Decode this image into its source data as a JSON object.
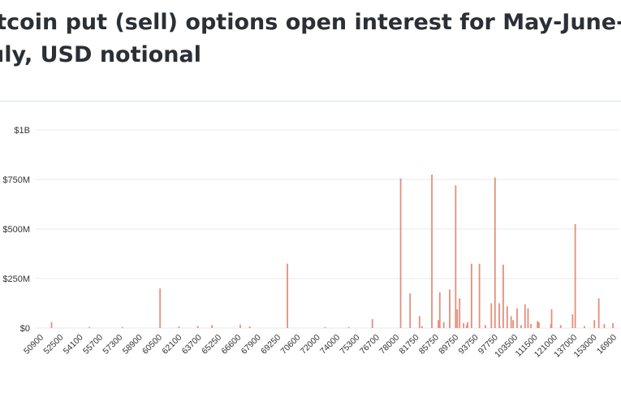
{
  "title_line1": "itcoin put (sell) options open interest for May-June-",
  "title_line2": "uly, USD notional",
  "colors": {
    "bar": "#e48f7c",
    "grid": "#e8e8e8",
    "text": "#2b2f36",
    "divider": "#d7e3e6"
  },
  "chart_data": {
    "type": "bar",
    "title": "itcoin put (sell) options open interest for May-June-uly, USD notional",
    "xlabel": "",
    "ylabel": "",
    "ylim": [
      0,
      1000000000
    ],
    "y_ticks": [
      {
        "value": 0,
        "label": "$0"
      },
      {
        "value": 250000000,
        "label": "$250M"
      },
      {
        "value": 500000000,
        "label": "$500M"
      },
      {
        "value": 750000000,
        "label": "$750M"
      },
      {
        "value": 1000000000,
        "label": "$1B"
      }
    ],
    "x_tick_labels": [
      "50900",
      "52500",
      "54100",
      "55700",
      "57300",
      "58900",
      "60500",
      "62100",
      "63700",
      "65250",
      "66600",
      "67900",
      "69250",
      "70600",
      "72000",
      "74000",
      "75300",
      "76700",
      "78000",
      "81750",
      "85750",
      "89750",
      "93750",
      "97750",
      "103500",
      "111500",
      "121000",
      "137000",
      "153000",
      "16900"
    ],
    "grid": true,
    "legend": "none",
    "slots": 122,
    "values": [
      [
        2,
        30000000
      ],
      [
        10,
        5000000
      ],
      [
        17,
        5000000
      ],
      [
        25,
        200000000
      ],
      [
        29,
        8000000
      ],
      [
        33,
        10000000
      ],
      [
        36,
        15000000
      ],
      [
        42,
        18000000
      ],
      [
        44,
        8000000
      ],
      [
        52,
        325000000
      ],
      [
        60,
        5000000
      ],
      [
        65,
        5000000
      ],
      [
        70,
        45000000
      ],
      [
        76,
        755000000
      ],
      [
        80,
        60000000
      ],
      [
        84,
        40000000
      ],
      [
        88,
        95000000
      ],
      [
        90,
        15000000
      ],
      [
        96,
        760000000
      ],
      [
        97,
        10000000
      ],
      [
        103,
        100000000
      ],
      [
        105,
        35000000
      ],
      [
        108,
        95000000
      ],
      [
        113,
        525000000
      ],
      [
        118,
        150000000
      ],
      [
        121,
        25000000
      ]
    ],
    "values_dense_region": [
      [
        0.0,
        175000000
      ],
      [
        0.06,
        10000000
      ],
      [
        0.11,
        775000000
      ],
      [
        0.15,
        180000000
      ],
      [
        0.17,
        30000000
      ],
      [
        0.2,
        195000000
      ],
      [
        0.23,
        720000000
      ],
      [
        0.25,
        150000000
      ],
      [
        0.27,
        25000000
      ],
      [
        0.29,
        30000000
      ],
      [
        0.31,
        325000000
      ],
      [
        0.35,
        325000000
      ],
      [
        0.38,
        15000000
      ],
      [
        0.41,
        125000000
      ],
      [
        0.45,
        125000000
      ],
      [
        0.47,
        320000000
      ],
      [
        0.49,
        110000000
      ],
      [
        0.51,
        60000000
      ],
      [
        0.52,
        40000000
      ],
      [
        0.54,
        100000000
      ],
      [
        0.56,
        15000000
      ],
      [
        0.58,
        120000000
      ],
      [
        0.61,
        20000000
      ],
      [
        0.65,
        30000000
      ],
      [
        0.71,
        20000000
      ],
      [
        0.76,
        15000000
      ],
      [
        0.82,
        70000000
      ],
      [
        0.88,
        10000000
      ],
      [
        0.93,
        40000000
      ],
      [
        0.98,
        20000000
      ]
    ]
  }
}
